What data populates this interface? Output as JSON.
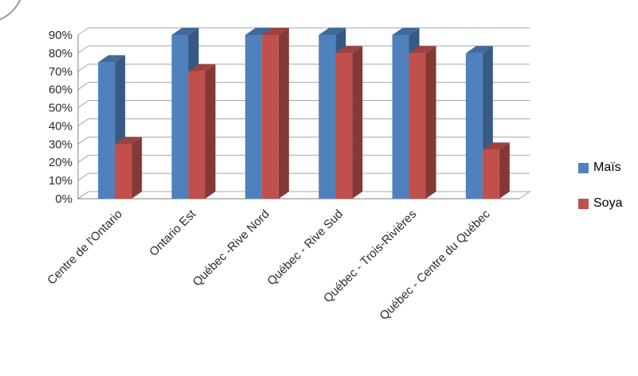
{
  "chart_data": {
    "type": "bar",
    "style": "3d-clustered-column",
    "title": "",
    "xlabel": "",
    "ylabel": "",
    "categories": [
      "Centre de l'Ontario",
      "Ontario Est",
      "Québec -Rive Nord",
      "Québec - Rive Sud",
      "Québec - Trois-Rivières",
      "Québec - Centre du Québec"
    ],
    "series": [
      {
        "name": "Maïs",
        "color": "#4F81BD",
        "values": [
          75,
          90,
          90,
          90,
          90,
          80
        ]
      },
      {
        "name": "Soya",
        "color": "#C0504D",
        "values": [
          30,
          70,
          90,
          80,
          80,
          27
        ]
      }
    ],
    "ylim": [
      0,
      90
    ],
    "ytick_step": 10,
    "yticks": [
      "0%",
      "10%",
      "20%",
      "30%",
      "40%",
      "50%",
      "60%",
      "70%",
      "80%",
      "90%"
    ],
    "ytick_format": "percent",
    "grid": true,
    "legend_position": "right",
    "category_label_rotation": -45
  },
  "colors": {
    "gridline": "#A6A6A6",
    "axis": "#808080",
    "tick_text": "#2B2B2B",
    "background": "#FFFFFF"
  }
}
